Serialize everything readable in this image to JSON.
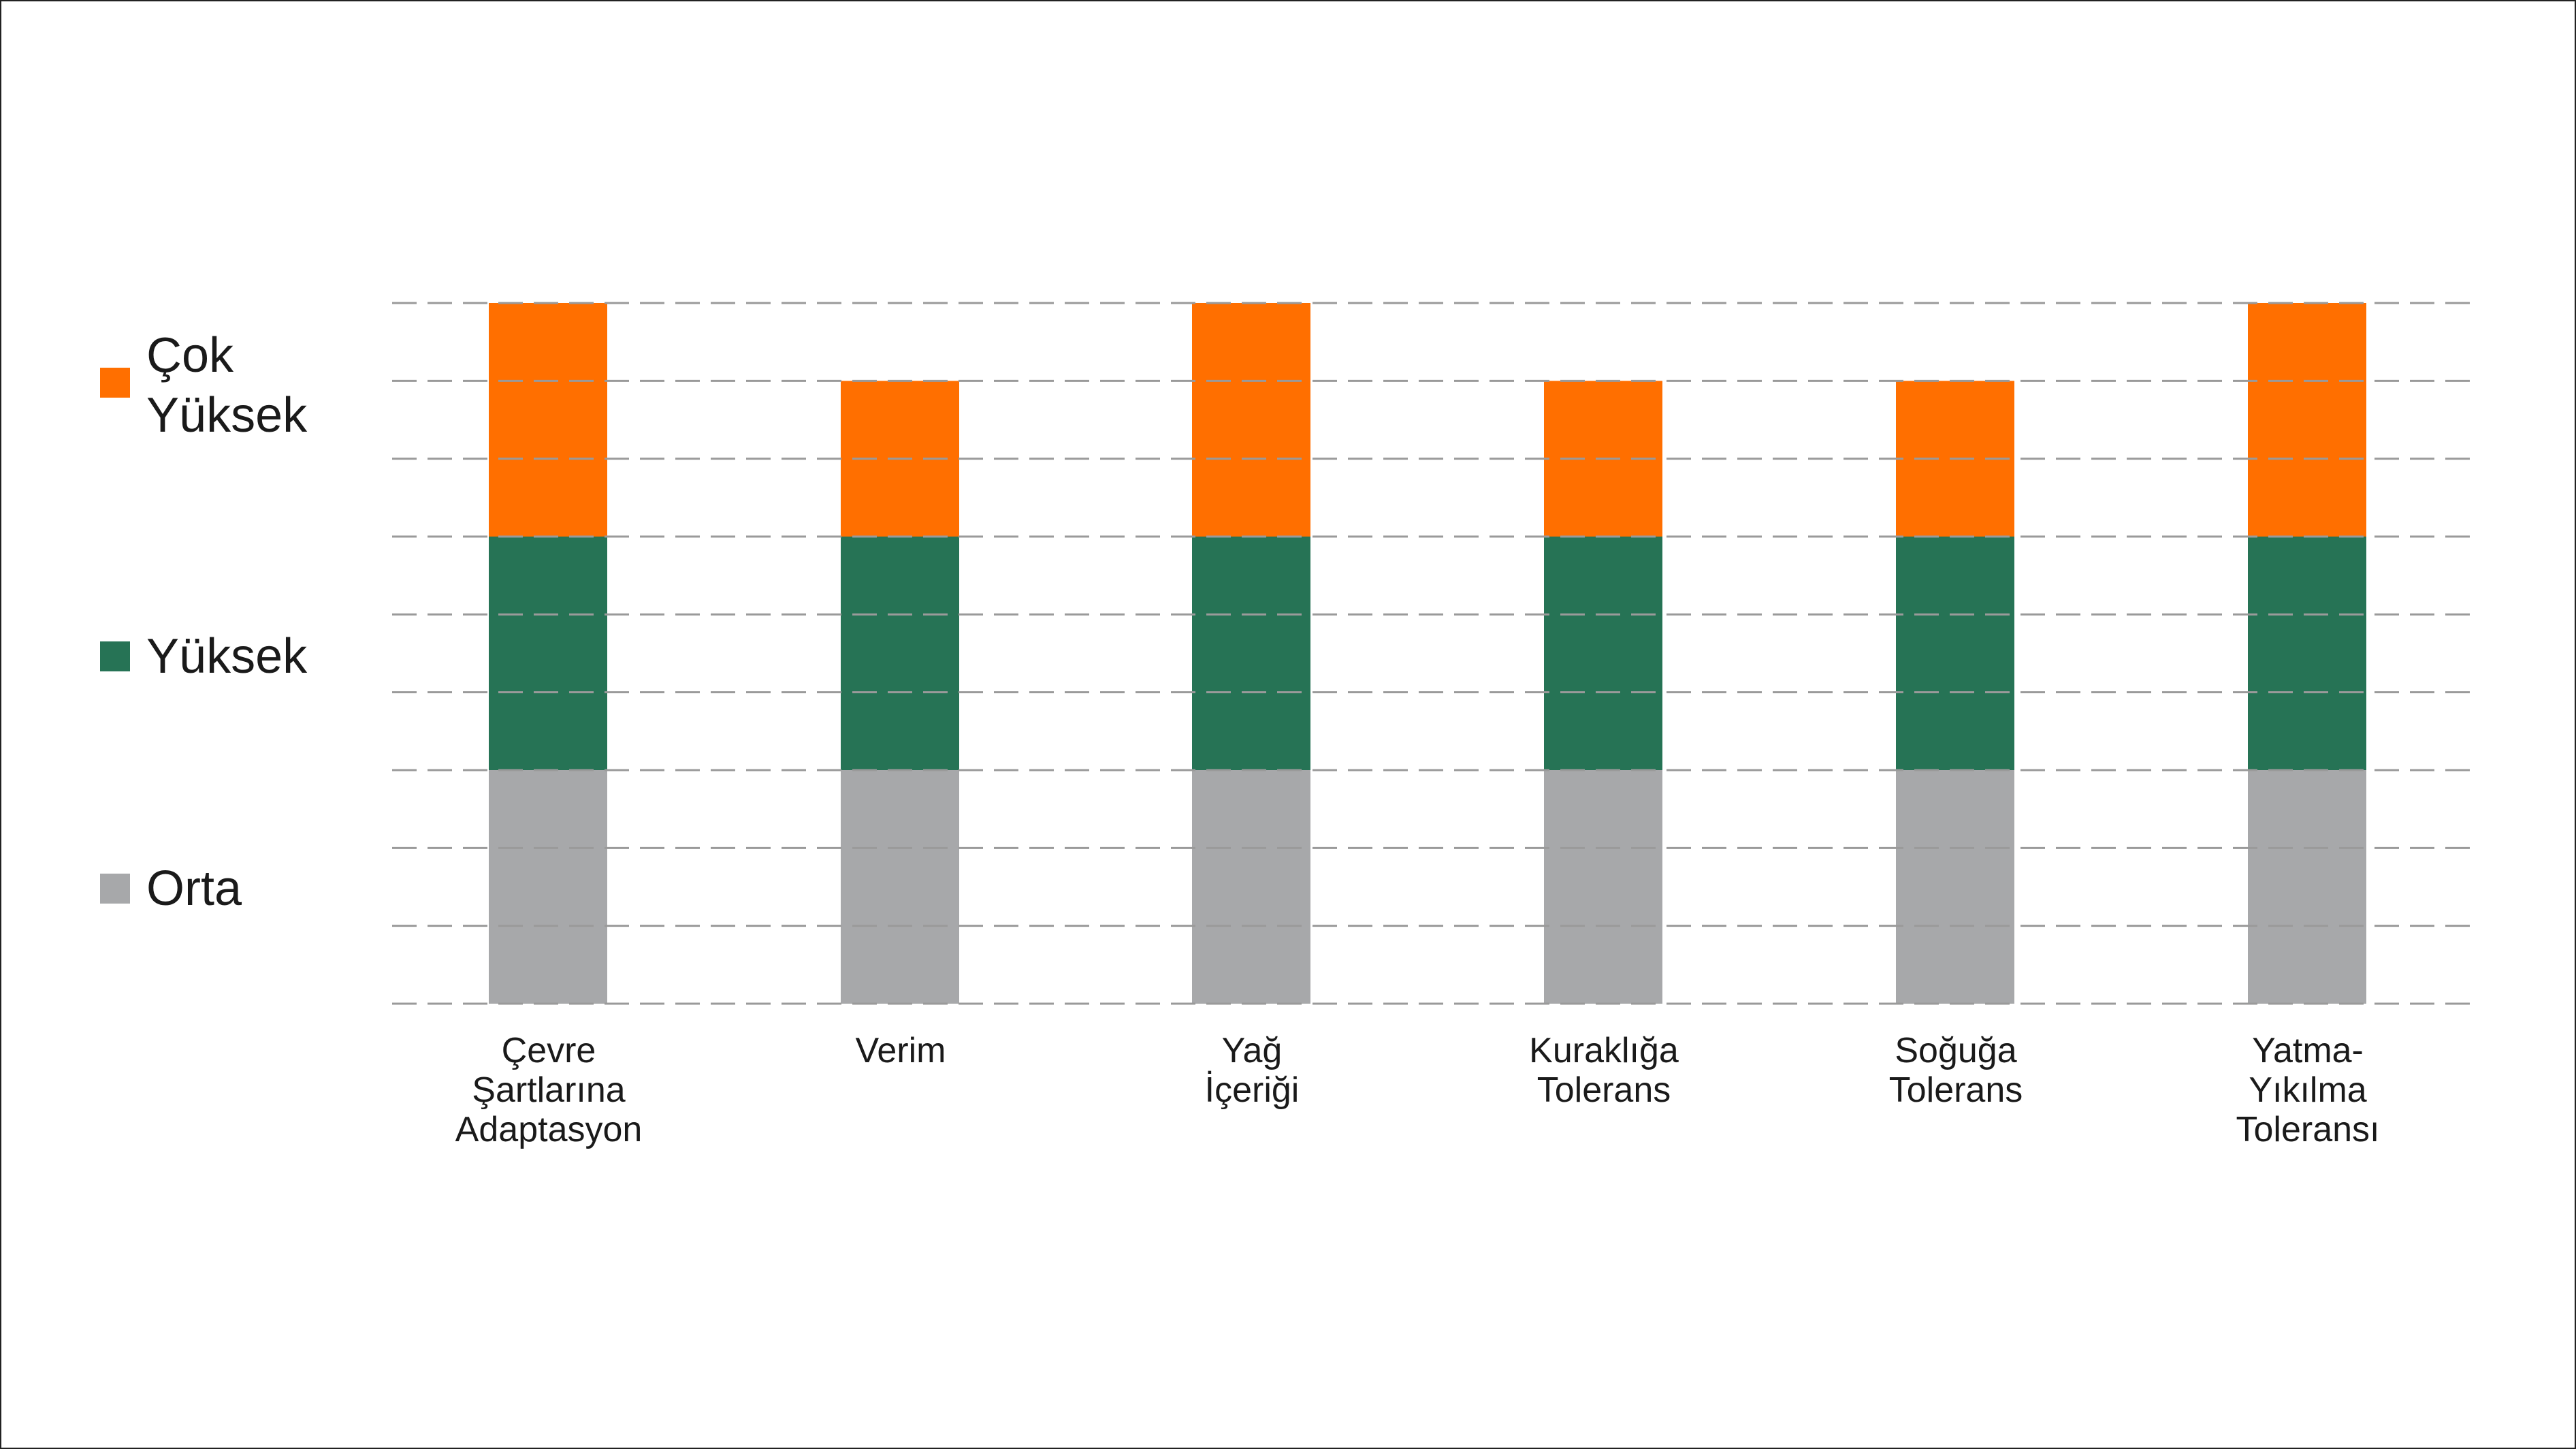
{
  "chart_data": {
    "type": "bar",
    "stacked": true,
    "grid": true,
    "legend_position": "left",
    "title": "",
    "xlabel": "",
    "ylabel": "",
    "categories": [
      "Çevre\nŞartlarına\nAdaptasyon",
      "Verim",
      "Yağ\nİçeriği",
      "Kuraklığa\nTolerans",
      "Soğuğa\nTolerans",
      "Yatma-\nYıkılma\nToleransı"
    ],
    "ylim": [
      0,
      9
    ],
    "series": [
      {
        "name": "Orta",
        "color": "#A7A8AA",
        "values": [
          3,
          3,
          3,
          3,
          3,
          3
        ]
      },
      {
        "name": "Yüksek",
        "color": "#267355",
        "values": [
          3,
          3,
          3,
          3,
          3,
          3
        ]
      },
      {
        "name": "Çok\nYüksek",
        "color": "#FF6F00",
        "values": [
          3,
          2,
          3,
          2,
          2,
          3
        ]
      }
    ]
  }
}
